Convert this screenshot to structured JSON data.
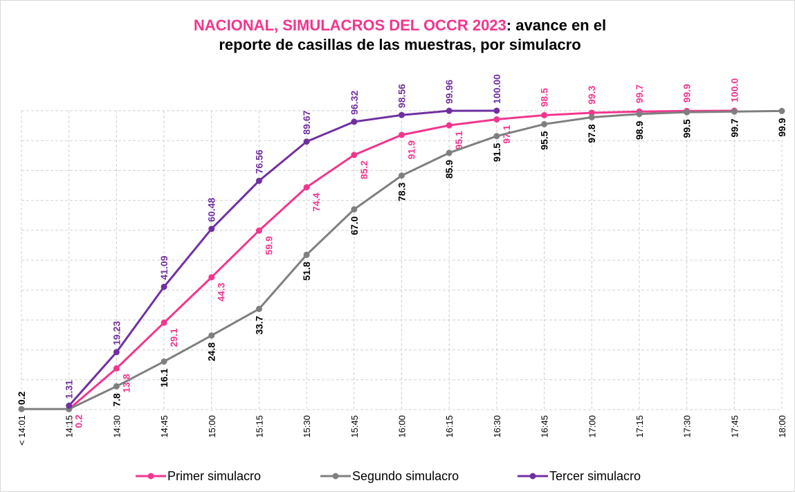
{
  "chart_data": {
    "type": "line",
    "title_parts": [
      "NACIONAL, SIMULACROS DEL OCCR 2023",
      ": avance en el",
      "reporte de casillas de las muestras, por simulacro"
    ],
    "categories": [
      "< 14:01",
      "14:15",
      "14:30",
      "14:45",
      "15:00",
      "15:15",
      "15:30",
      "15:45",
      "16:00",
      "16:15",
      "16:30",
      "16:45",
      "17:00",
      "17:15",
      "17:30",
      "17:45",
      "18:00"
    ],
    "series": [
      {
        "name": "Primer simulacro",
        "color": "#f2368e",
        "values": [
          null,
          0.2,
          13.8,
          29.1,
          44.3,
          59.9,
          74.4,
          85.2,
          91.9,
          95.1,
          97.1,
          98.5,
          99.3,
          99.7,
          99.9,
          100.0,
          null
        ],
        "value_labels": [
          null,
          "0.2",
          "13.8",
          "29.1",
          "44.3",
          "59.9",
          "74.4",
          "85.2",
          "91.9",
          "95.1",
          "97.1",
          "98.5",
          "99.3",
          "99.7",
          "99.9",
          "100.0",
          null
        ]
      },
      {
        "name": "Segundo simulacro",
        "color": "#7f7f7f",
        "values": [
          0.2,
          0.2,
          7.8,
          16.1,
          24.8,
          33.7,
          51.8,
          67.0,
          78.3,
          85.9,
          91.5,
          95.5,
          97.8,
          98.9,
          99.5,
          99.7,
          99.9
        ],
        "value_labels": [
          "0.2",
          null,
          "7.8",
          "16.1",
          "24.8",
          "33.7",
          "51.8",
          "67.0",
          "78.3",
          "85.9",
          "91.5",
          "95.5",
          "97.8",
          "98.9",
          "99.5",
          "99.7",
          "99.9"
        ]
      },
      {
        "name": "Tercer simulacro",
        "color": "#7030a0",
        "values": [
          null,
          1.31,
          19.23,
          41.09,
          60.48,
          76.56,
          89.67,
          96.32,
          98.56,
          99.96,
          100.0,
          null,
          null,
          null,
          null,
          null,
          null
        ],
        "value_labels": [
          null,
          "1.31",
          "19.23",
          "41.09",
          "60.48",
          "76.56",
          "89.67",
          "96.32",
          "98.56",
          "99.96",
          "100.00",
          null,
          null,
          null,
          null,
          null,
          null
        ]
      }
    ],
    "ylim": [
      0,
      100
    ],
    "yticks": [
      0,
      10,
      20,
      30,
      40,
      50,
      60,
      70,
      80,
      90,
      100
    ],
    "grid": true,
    "legend": "bottom"
  }
}
